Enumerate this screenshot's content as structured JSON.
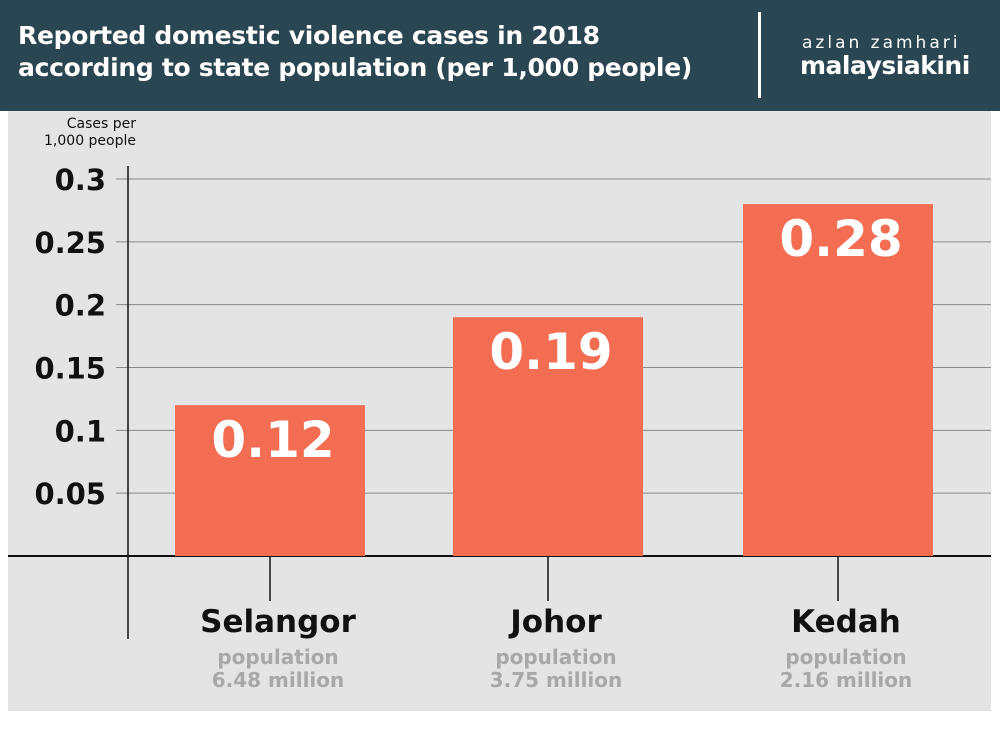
{
  "header": {
    "title": "Reported domestic violence cases in 2018\naccording to state population (per 1,000 people)",
    "author": "azlan zamhari",
    "brand": "malaysiakini"
  },
  "colors": {
    "header_bg": "#2a4652",
    "chart_bg": "#e4e4e4",
    "bar": "#f26d51",
    "subtitle_text": "#a8a8a8"
  },
  "chart_data": {
    "type": "bar",
    "title": "Reported domestic violence cases in 2018 according to state population (per 1,000 people)",
    "ylabel": "Cases per\n1,000 people",
    "xlabel": "",
    "ylim": [
      0,
      0.3
    ],
    "yticks": [
      0.05,
      0.1,
      0.15,
      0.2,
      0.25,
      0.3
    ],
    "ytick_labels": [
      "0.05",
      "0.1",
      "0.15",
      "0.2",
      "0.25",
      "0.3"
    ],
    "grid": true,
    "categories": [
      "Selangor",
      "Johor",
      "Kedah"
    ],
    "values": [
      0.12,
      0.19,
      0.28
    ],
    "value_labels": [
      "0.12",
      "0.19",
      "0.28"
    ],
    "category_notes": [
      [
        "population",
        "6.48 million"
      ],
      [
        "population",
        "3.75 million"
      ],
      [
        "population",
        "2.16 million"
      ]
    ]
  }
}
